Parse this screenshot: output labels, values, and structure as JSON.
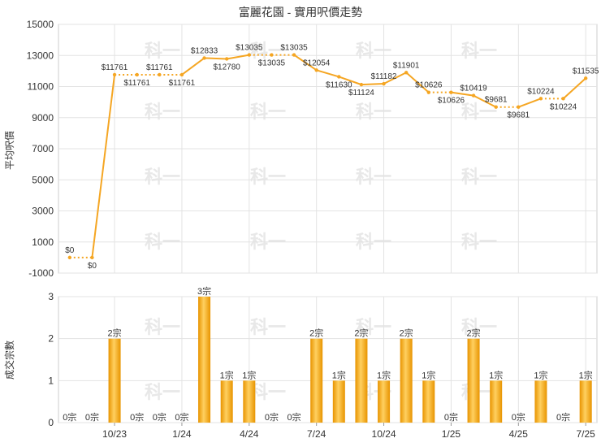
{
  "chart_data": [
    {
      "type": "line",
      "title": "富麗花園 - 實用呎價走勢",
      "ylabel": "平均呎價",
      "ylim": [
        -1000,
        15000
      ],
      "yticks": [
        -1000,
        1000,
        3000,
        5000,
        7000,
        9000,
        11000,
        13000,
        15000
      ],
      "grid": true,
      "series": [
        {
          "values": [
            0,
            0,
            11761,
            11761,
            11761,
            11761,
            12833,
            12780,
            13035,
            13035,
            13035,
            12054,
            11630,
            11124,
            11182,
            11901,
            10626,
            10626,
            10419,
            9681,
            9681,
            10224,
            10224,
            11535
          ],
          "labels": [
            "$0",
            "$0",
            "$11761",
            "$11761",
            "$11761",
            "$11761",
            "$12833",
            "$12780",
            "$13035",
            "$13035",
            "$13035",
            "$12054",
            "$11630",
            "$11124",
            "$11182",
            "$11901",
            "$10626",
            "$10626",
            "$10419",
            "$9681",
            "$9681",
            "$10224",
            "$10224",
            "$11535"
          ],
          "color": "#f5a623"
        }
      ],
      "watermark": "科一"
    },
    {
      "type": "bar",
      "ylabel": "成交宗數",
      "ylim": [
        0,
        3
      ],
      "yticks": [
        0,
        1,
        2,
        3
      ],
      "grid": true,
      "values": [
        0,
        0,
        2,
        0,
        0,
        0,
        3,
        1,
        1,
        0,
        0,
        2,
        1,
        2,
        1,
        2,
        1,
        0,
        2,
        1,
        0,
        1,
        0,
        1
      ],
      "labels": [
        "0宗",
        "0宗",
        "2宗",
        "0宗",
        "0宗",
        "0宗",
        "3宗",
        "1宗",
        "1宗",
        "0宗",
        "0宗",
        "2宗",
        "1宗",
        "2宗",
        "1宗",
        "2宗",
        "1宗",
        "0宗",
        "2宗",
        "1宗",
        "0宗",
        "1宗",
        "0宗",
        "1宗"
      ],
      "color": "#f0a500",
      "x_tick_labels": [
        "10/23",
        "1/24",
        "4/24",
        "7/24",
        "10/24",
        "1/25",
        "4/25",
        "7/25"
      ],
      "x_tick_positions": [
        2,
        5,
        8,
        11,
        14,
        17,
        20,
        23
      ]
    }
  ]
}
